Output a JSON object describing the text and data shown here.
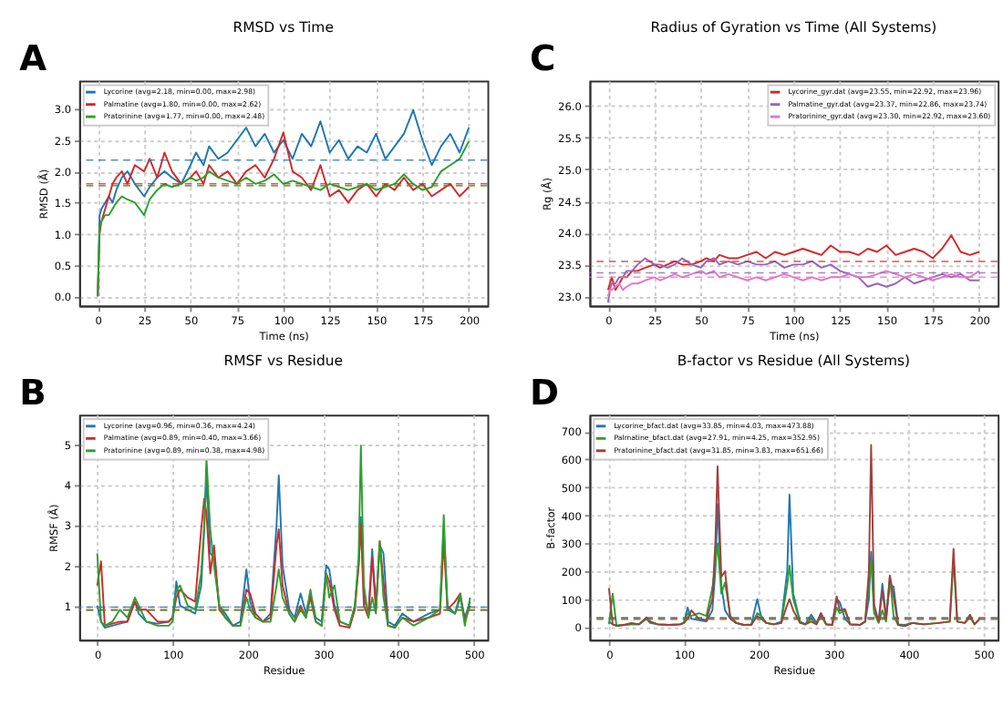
{
  "chart_data": [
    {
      "type": "line",
      "title": "RMSD vs Time",
      "xlabel": "Time (ns)",
      "ylabel": "RMSD (Å)",
      "annotations": [
        "A"
      ],
      "legend": "top left",
      "grid": true,
      "line_style": "solid",
      "marker": "none",
      "x": [
        0,
        1,
        2,
        4,
        6,
        8,
        10,
        13,
        16,
        20,
        25,
        28,
        32,
        36,
        40,
        45,
        50,
        53,
        57,
        60,
        65,
        70,
        75,
        80,
        85,
        90,
        95,
        100,
        105,
        110,
        115,
        120,
        125,
        130,
        135,
        140,
        145,
        150,
        155,
        160,
        165,
        170,
        175,
        180,
        185,
        190,
        195,
        200
      ],
      "xlim": [
        -10,
        210
      ],
      "xticks": [
        0,
        25,
        50,
        75,
        100,
        125,
        150,
        175,
        200
      ],
      "ylim": [
        -0.15,
        3.45
      ],
      "yticks": [
        {
          "value": 0,
          "label": "0.0"
        },
        0.5,
        {
          "value": 1,
          "label": "1.0"
        },
        1.5,
        {
          "value": 2,
          "label": "2.0"
        },
        2.5,
        {
          "value": 3,
          "label": "3.0"
        }
      ],
      "series": [
        {
          "name": "Lycorine (avg=2.18, min=0.00, max=2.98)",
          "color": "#1f77b4",
          "values": [
            0,
            1.3,
            1.4,
            1.5,
            1.6,
            1.5,
            1.7,
            1.9,
            2.0,
            1.8,
            1.6,
            1.75,
            1.9,
            2.0,
            1.9,
            1.8,
            2.1,
            2.3,
            2.1,
            2.4,
            2.2,
            2.3,
            2.5,
            2.7,
            2.4,
            2.6,
            2.3,
            2.5,
            2.2,
            2.6,
            2.4,
            2.8,
            2.3,
            2.5,
            2.2,
            2.4,
            2.3,
            2.6,
            2.2,
            2.4,
            2.6,
            2.98,
            2.5,
            2.1,
            2.4,
            2.6,
            2.3,
            2.7
          ]
        },
        {
          "name": "Palmatine (avg=1.80, min=0.00, max=2.62)",
          "color": "#d62728",
          "values": [
            0,
            1.0,
            1.2,
            1.4,
            1.6,
            1.8,
            1.9,
            2.0,
            1.8,
            2.1,
            2.0,
            2.2,
            1.9,
            2.3,
            2.0,
            1.8,
            1.9,
            2.0,
            1.8,
            2.1,
            1.9,
            2.0,
            1.8,
            2.0,
            2.1,
            1.9,
            2.2,
            2.62,
            2.0,
            1.9,
            1.7,
            2.1,
            1.6,
            1.7,
            1.5,
            1.7,
            1.8,
            1.6,
            1.8,
            1.7,
            1.9,
            1.7,
            1.8,
            1.6,
            1.7,
            1.8,
            1.6,
            1.75
          ]
        },
        {
          "name": "Pratorinine (avg=1.77, min=0.00, max=2.48)",
          "color": "#2ca02c",
          "values": [
            0,
            1.1,
            1.2,
            1.3,
            1.3,
            1.4,
            1.5,
            1.6,
            1.55,
            1.5,
            1.3,
            1.55,
            1.7,
            1.8,
            1.75,
            1.8,
            1.9,
            1.85,
            1.9,
            2.0,
            1.9,
            1.85,
            1.8,
            1.9,
            1.8,
            1.85,
            1.95,
            1.8,
            1.85,
            1.8,
            1.75,
            1.7,
            1.8,
            1.75,
            1.7,
            1.75,
            1.8,
            1.7,
            1.75,
            1.8,
            1.95,
            1.8,
            1.7,
            1.75,
            2.0,
            2.1,
            2.2,
            2.48
          ]
        }
      ],
      "ref_lines": [
        {
          "axis": "y",
          "value": 2.18,
          "color": "#1f77b4",
          "line_style": "dashed"
        },
        {
          "axis": "y",
          "value": 1.8,
          "color": "#d62728",
          "line_style": "dashed"
        },
        {
          "axis": "y",
          "value": 1.77,
          "color": "#2ca02c",
          "line_style": "dashed"
        }
      ]
    },
    {
      "type": "line",
      "title": "Radius of Gyration vs Time (All Systems)",
      "xlabel": "Time (ns)",
      "ylabel": "Rg (Å)",
      "annotations": [
        "C"
      ],
      "legend": "top right",
      "grid": true,
      "line_style": "solid",
      "marker": "none",
      "x": [
        0,
        1,
        2,
        4,
        6,
        8,
        10,
        13,
        16,
        20,
        25,
        28,
        32,
        36,
        40,
        45,
        50,
        53,
        57,
        60,
        65,
        70,
        75,
        80,
        85,
        90,
        95,
        100,
        105,
        110,
        115,
        120,
        125,
        130,
        135,
        140,
        145,
        150,
        155,
        160,
        165,
        170,
        175,
        180,
        185,
        190,
        195,
        200
      ],
      "xlim": [
        -10,
        210
      ],
      "xticks": [
        0,
        25,
        50,
        75,
        100,
        125,
        150,
        175,
        200
      ],
      "ylim": [
        22.85,
        26.4
      ],
      "yticks": [
        {
          "value": 23,
          "label": "23.0"
        },
        23.5,
        {
          "value": 24,
          "label": "24.0"
        },
        24.5,
        {
          "value": 25,
          "label": "25.0"
        },
        25.5,
        {
          "value": 26,
          "label": "26.0"
        }
      ],
      "series": [
        {
          "name": "Lycorine_gyr.dat (avg=23.55, min=22.92, max=23.96)",
          "color": "#d62728",
          "values": [
            23.1,
            23.2,
            23.3,
            23.1,
            23.2,
            23.3,
            23.3,
            23.4,
            23.4,
            23.45,
            23.5,
            23.45,
            23.5,
            23.55,
            23.5,
            23.5,
            23.55,
            23.6,
            23.55,
            23.65,
            23.6,
            23.6,
            23.65,
            23.7,
            23.6,
            23.7,
            23.65,
            23.7,
            23.75,
            23.7,
            23.65,
            23.8,
            23.7,
            23.7,
            23.65,
            23.75,
            23.7,
            23.8,
            23.65,
            23.7,
            23.75,
            23.7,
            23.6,
            23.75,
            23.96,
            23.7,
            23.65,
            23.7
          ]
        },
        {
          "name": "Palmatine_gyr.dat (avg=23.37, min=22.86, max=23.74)",
          "color": "#9467bd",
          "values": [
            22.9,
            23.1,
            23.2,
            23.2,
            23.3,
            23.3,
            23.4,
            23.4,
            23.5,
            23.6,
            23.5,
            23.5,
            23.45,
            23.5,
            23.6,
            23.5,
            23.45,
            23.55,
            23.6,
            23.5,
            23.55,
            23.5,
            23.55,
            23.5,
            23.5,
            23.55,
            23.45,
            23.5,
            23.5,
            23.55,
            23.45,
            23.5,
            23.4,
            23.35,
            23.3,
            23.15,
            23.2,
            23.15,
            23.2,
            23.3,
            23.2,
            23.25,
            23.3,
            23.35,
            23.3,
            23.35,
            23.25,
            23.25
          ]
        },
        {
          "name": "Pratorinine_gyr.dat (avg=23.30, min=22.92, max=23.60)",
          "color": "#e377c2",
          "values": [
            23.0,
            23.1,
            23.1,
            23.15,
            23.2,
            23.1,
            23.15,
            23.2,
            23.2,
            23.25,
            23.3,
            23.25,
            23.3,
            23.35,
            23.3,
            23.35,
            23.4,
            23.35,
            23.4,
            23.3,
            23.35,
            23.3,
            23.25,
            23.3,
            23.25,
            23.3,
            23.35,
            23.3,
            23.25,
            23.3,
            23.25,
            23.3,
            23.3,
            23.35,
            23.3,
            23.3,
            23.35,
            23.4,
            23.35,
            23.3,
            23.35,
            23.3,
            23.25,
            23.3,
            23.35,
            23.3,
            23.3,
            23.4
          ]
        }
      ],
      "ref_lines": [
        {
          "axis": "y",
          "value": 23.55,
          "color": "#d62728",
          "line_style": "dashed"
        },
        {
          "axis": "y",
          "value": 23.37,
          "color": "#9467bd",
          "line_style": "dashed"
        },
        {
          "axis": "y",
          "value": 23.3,
          "color": "#e377c2",
          "line_style": "dashed"
        }
      ]
    },
    {
      "type": "line",
      "title": "RMSF vs Residue",
      "xlabel": "Residue",
      "ylabel": "RMSF (Å)",
      "annotations": [
        "B"
      ],
      "legend": "top left",
      "grid": true,
      "line_style": "solid",
      "marker": "none",
      "x": [
        0,
        5,
        10,
        20,
        30,
        40,
        50,
        55,
        65,
        80,
        95,
        100,
        105,
        110,
        120,
        130,
        138,
        142,
        145,
        150,
        155,
        162,
        170,
        180,
        190,
        198,
        203,
        210,
        220,
        230,
        238,
        241,
        246,
        255,
        262,
        270,
        277,
        283,
        290,
        298,
        304,
        308,
        315,
        322,
        335,
        342,
        347,
        350,
        354,
        360,
        365,
        370,
        375,
        380,
        386,
        395,
        405,
        420,
        440,
        455,
        460,
        465,
        475,
        482,
        488,
        495
      ],
      "xlim": [
        -24,
        518
      ],
      "xticks": [
        0,
        100,
        200,
        300,
        400,
        500
      ],
      "ylim": [
        0.15,
        5.75
      ],
      "yticks": [
        1,
        2,
        3,
        4,
        5
      ],
      "series": [
        {
          "name": "Lycorine (avg=0.96, min=0.36, max=4.24)",
          "color": "#1f77b4",
          "values": [
            1.0,
            0.6,
            0.45,
            0.5,
            0.55,
            0.6,
            1.1,
            0.8,
            0.6,
            0.55,
            0.6,
            0.7,
            1.6,
            1.0,
            0.9,
            0.8,
            1.5,
            2.9,
            4.2,
            2.3,
            2.2,
            1.0,
            0.8,
            0.5,
            0.6,
            1.9,
            1.1,
            0.7,
            0.6,
            0.8,
            3.0,
            4.24,
            2.0,
            0.9,
            0.7,
            1.3,
            0.8,
            1.3,
            0.7,
            0.6,
            2.0,
            1.9,
            1.0,
            0.6,
            0.5,
            1.0,
            2.0,
            3.2,
            1.2,
            0.8,
            2.4,
            1.0,
            2.5,
            2.3,
            0.6,
            0.5,
            0.8,
            0.6,
            0.8,
            0.9,
            2.9,
            1.0,
            0.8,
            1.2,
            0.7,
            1.1
          ]
        },
        {
          "name": "Palmatine (avg=0.89, min=0.40, max=3.66)",
          "color": "#d62728",
          "values": [
            1.5,
            2.1,
            0.5,
            0.55,
            0.6,
            0.6,
            1.1,
            0.9,
            0.9,
            0.6,
            0.6,
            0.7,
            1.2,
            1.4,
            1.2,
            1.1,
            2.9,
            3.66,
            3.3,
            1.8,
            2.5,
            0.9,
            0.7,
            0.5,
            0.5,
            1.4,
            1.3,
            0.8,
            0.6,
            0.7,
            2.5,
            2.9,
            1.5,
            0.8,
            0.6,
            1.0,
            0.7,
            1.2,
            0.6,
            0.5,
            1.8,
            1.6,
            0.9,
            0.5,
            0.45,
            0.9,
            2.0,
            3.0,
            1.0,
            0.7,
            2.2,
            0.9,
            2.6,
            1.6,
            0.5,
            0.45,
            0.7,
            0.6,
            0.7,
            0.8,
            2.6,
            0.9,
            1.1,
            1.3,
            0.6,
            1.0
          ]
        },
        {
          "name": "Pratorinine (avg=0.89, min=0.38, max=4.98)",
          "color": "#2ca02c",
          "values": [
            2.3,
            0.6,
            0.5,
            0.6,
            0.9,
            0.7,
            1.2,
            1.0,
            0.6,
            0.5,
            0.5,
            0.6,
            1.4,
            1.5,
            1.0,
            0.9,
            1.8,
            3.0,
            4.66,
            2.9,
            2.0,
            1.0,
            0.7,
            0.5,
            0.5,
            1.2,
            0.9,
            0.7,
            0.6,
            0.6,
            1.5,
            1.9,
            1.2,
            0.8,
            0.6,
            0.9,
            0.7,
            1.4,
            0.6,
            0.5,
            1.8,
            1.2,
            1.5,
            0.6,
            0.5,
            1.0,
            2.2,
            4.98,
            1.5,
            0.7,
            1.2,
            0.8,
            2.6,
            1.2,
            0.5,
            0.45,
            0.7,
            0.5,
            0.7,
            0.9,
            3.25,
            0.9,
            0.8,
            1.3,
            0.5,
            1.2
          ]
        }
      ],
      "ref_lines": [
        {
          "axis": "y",
          "value": 0.96,
          "color": "#1f77b4",
          "line_style": "dashed"
        },
        {
          "axis": "y",
          "value": 0.89,
          "color": "#d62728",
          "line_style": "dashed"
        },
        {
          "axis": "y",
          "value": 0.89,
          "color": "#2ca02c",
          "line_style": "dashed"
        }
      ]
    },
    {
      "type": "line",
      "title": "B-factor vs Residue (All Systems)",
      "xlabel": "Residue",
      "ylabel": "B-factor",
      "annotations": [
        "D"
      ],
      "legend": "top left",
      "grid": true,
      "line_style": "solid",
      "marker": "none",
      "x": [
        0,
        5,
        10,
        20,
        30,
        40,
        50,
        55,
        65,
        80,
        95,
        100,
        105,
        110,
        120,
        130,
        138,
        142,
        145,
        150,
        155,
        162,
        170,
        180,
        190,
        198,
        203,
        210,
        220,
        230,
        238,
        241,
        246,
        255,
        262,
        270,
        277,
        283,
        290,
        298,
        304,
        308,
        315,
        322,
        335,
        342,
        347,
        350,
        354,
        360,
        365,
        370,
        375,
        380,
        386,
        395,
        405,
        420,
        440,
        455,
        460,
        465,
        475,
        482,
        488,
        495
      ],
      "xlim": [
        -26,
        519
      ],
      "xticks": [
        0,
        100,
        200,
        300,
        400,
        500
      ],
      "ylim": [
        -45,
        760
      ],
      "yticks": [
        0,
        100,
        200,
        300,
        400,
        500,
        600,
        700
      ],
      "series": [
        {
          "name": "Lycorine_bfact.dat (avg=33.85, min=4.03, max=473.88)",
          "color": "#1f77b4",
          "values": [
            20,
            10,
            5,
            8,
            10,
            10,
            30,
            15,
            10,
            8,
            10,
            15,
            70,
            30,
            25,
            20,
            60,
            200,
            440,
            150,
            60,
            30,
            15,
            8,
            10,
            100,
            40,
            15,
            10,
            20,
            200,
            474,
            120,
            20,
            10,
            45,
            15,
            50,
            10,
            8,
            100,
            90,
            30,
            10,
            8,
            20,
            100,
            270,
            60,
            20,
            155,
            40,
            150,
            145,
            10,
            8,
            15,
            10,
            null,
            null,
            null,
            null,
            null,
            null,
            null,
            null
          ]
        },
        {
          "name": "Palmatine_bfact.dat (avg=27.91, min=4.25, max=352.95)",
          "color": "#2ca02c",
          "values": [
            10,
            120,
            5,
            8,
            10,
            10,
            30,
            20,
            10,
            8,
            10,
            15,
            50,
            40,
            50,
            40,
            140,
            220,
            300,
            120,
            160,
            40,
            15,
            8,
            8,
            50,
            40,
            15,
            10,
            15,
            150,
            220,
            100,
            20,
            10,
            30,
            10,
            40,
            10,
            8,
            70,
            50,
            60,
            10,
            8,
            20,
            150,
            240,
            50,
            15,
            60,
            20,
            180,
            40,
            8,
            5,
            15,
            10,
            15,
            20,
            240,
            20,
            15,
            35,
            10,
            30
          ]
        },
        {
          "name": "Pratorinine_bfact.dat (avg=31.85, min=3.83, max=651.66)",
          "color": "#a0403c",
          "values": [
            140,
            10,
            5,
            8,
            15,
            10,
            35,
            20,
            10,
            8,
            10,
            15,
            30,
            60,
            30,
            25,
            100,
            300,
            575,
            180,
            200,
            30,
            15,
            8,
            8,
            40,
            30,
            15,
            10,
            15,
            80,
            100,
            60,
            15,
            10,
            20,
            10,
            50,
            10,
            8,
            110,
            60,
            65,
            10,
            8,
            20,
            200,
            652,
            80,
            20,
            130,
            30,
            185,
            110,
            8,
            4,
            15,
            10,
            15,
            20,
            280,
            20,
            15,
            45,
            10,
            30
          ]
        }
      ],
      "ref_lines": [
        {
          "axis": "y",
          "value": 33.85,
          "color": "#1f77b4",
          "line_style": "dashed"
        },
        {
          "axis": "y",
          "value": 27.91,
          "color": "#2ca02c",
          "line_style": "dashed"
        },
        {
          "axis": "y",
          "value": 31.85,
          "color": "#a0403c",
          "line_style": "dashed"
        }
      ]
    }
  ]
}
